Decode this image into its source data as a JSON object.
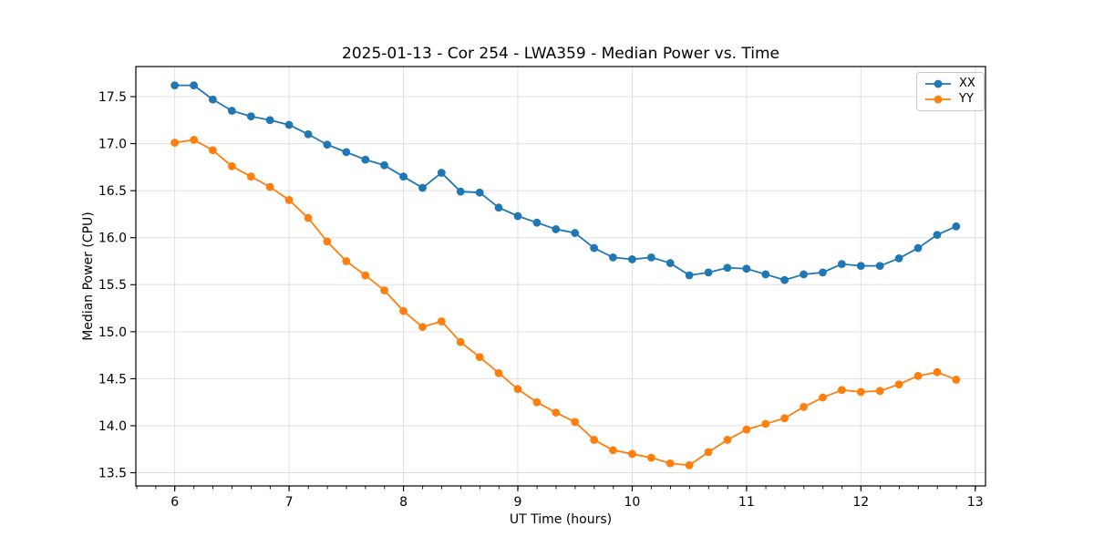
{
  "chart_data": {
    "type": "line",
    "title": "2025-01-13 - Cor 254 - LWA359 - Median Power vs. Time",
    "xlabel": "UT Time (hours)",
    "ylabel": "Median Power (CPU)",
    "grid": true,
    "legend_position": "upper right",
    "xlim": [
      5.66,
      13.09
    ],
    "ylim": [
      13.36,
      17.82
    ],
    "xticks": [
      6,
      7,
      8,
      9,
      10,
      11,
      12,
      13
    ],
    "xtick_labels": [
      "6",
      "7",
      "8",
      "9",
      "10",
      "11",
      "12",
      "13"
    ],
    "yticks": [
      13.5,
      14.0,
      14.5,
      15.0,
      15.5,
      16.0,
      16.5,
      17.0,
      17.5
    ],
    "ytick_labels": [
      "13.5",
      "14.0",
      "14.5",
      "15.0",
      "15.5",
      "16.0",
      "16.5",
      "17.0",
      "17.5"
    ],
    "x_minor_tick_step": 0.1667,
    "x": [
      6.0,
      6.167,
      6.333,
      6.5,
      6.667,
      6.833,
      7.0,
      7.167,
      7.333,
      7.5,
      7.667,
      7.833,
      8.0,
      8.167,
      8.333,
      8.5,
      8.667,
      8.833,
      9.0,
      9.167,
      9.333,
      9.5,
      9.667,
      9.833,
      10.0,
      10.167,
      10.333,
      10.5,
      10.667,
      10.833,
      11.0,
      11.167,
      11.333,
      11.5,
      11.667,
      11.833,
      12.0,
      12.167,
      12.333,
      12.5,
      12.667,
      12.833
    ],
    "series": [
      {
        "name": "XX",
        "color": "#1f77b4",
        "values": [
          17.62,
          17.62,
          17.47,
          17.35,
          17.29,
          17.25,
          17.2,
          17.1,
          16.99,
          16.91,
          16.83,
          16.77,
          16.65,
          16.53,
          16.69,
          16.49,
          16.48,
          16.32,
          16.23,
          16.16,
          16.09,
          16.05,
          15.89,
          15.79,
          15.77,
          15.79,
          15.73,
          15.6,
          15.63,
          15.68,
          15.67,
          15.61,
          15.55,
          15.61,
          15.63,
          15.72,
          15.7,
          15.7,
          15.78,
          15.89,
          16.03,
          16.12
        ]
      },
      {
        "name": "YY",
        "color": "#ff7f0e",
        "values": [
          17.01,
          17.04,
          16.93,
          16.76,
          16.65,
          16.54,
          16.4,
          16.21,
          15.96,
          15.75,
          15.6,
          15.44,
          15.22,
          15.05,
          15.11,
          14.89,
          14.73,
          14.56,
          14.39,
          14.25,
          14.14,
          14.04,
          13.85,
          13.74,
          13.7,
          13.66,
          13.6,
          13.58,
          13.72,
          13.85,
          13.96,
          14.02,
          14.08,
          14.2,
          14.3,
          14.38,
          14.36,
          14.37,
          14.44,
          14.53,
          14.57,
          14.49
        ]
      }
    ]
  }
}
